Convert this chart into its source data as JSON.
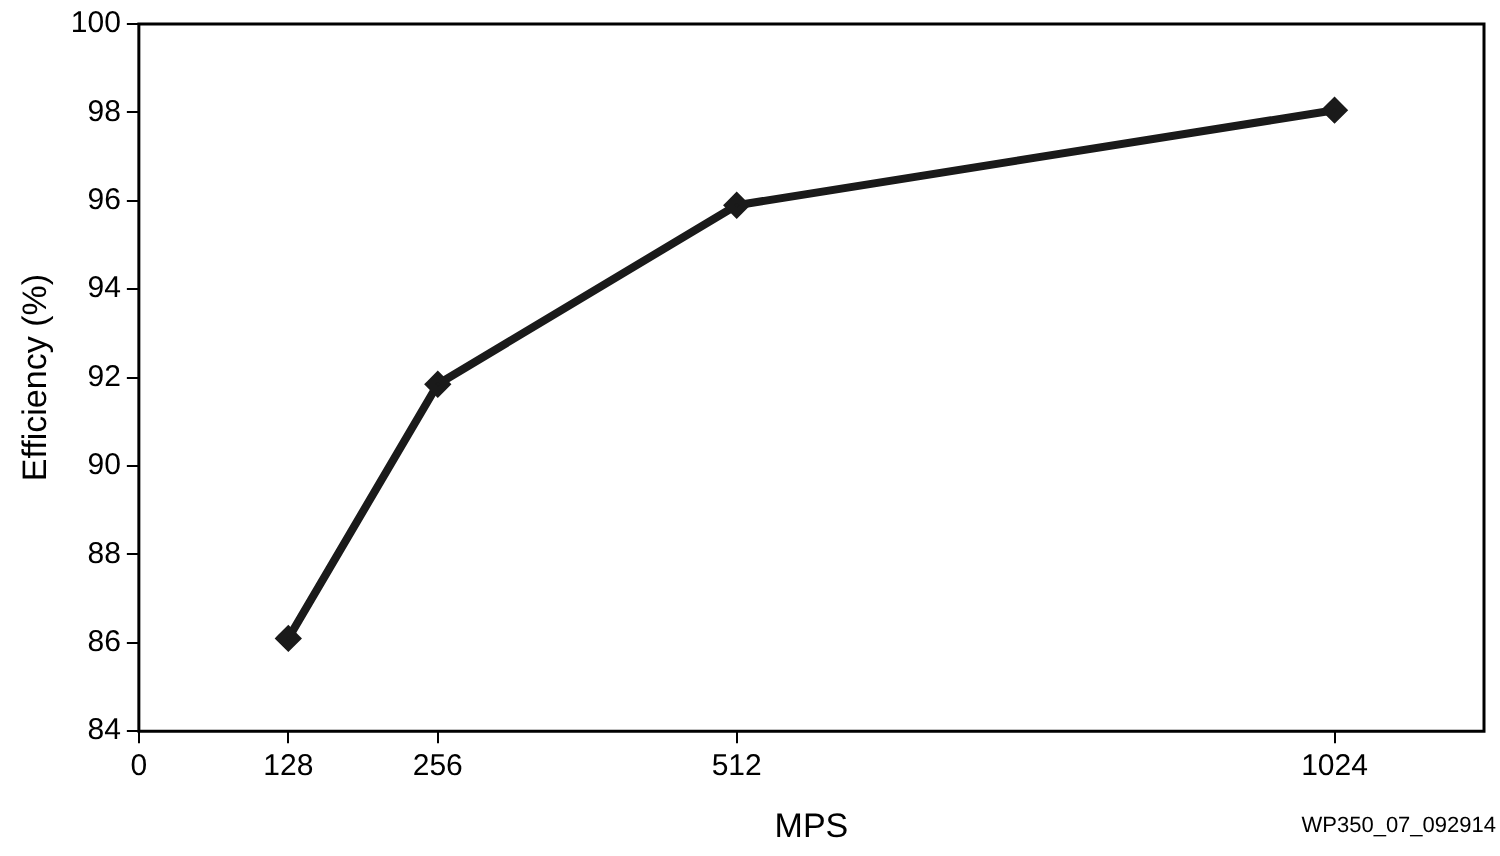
{
  "chart_data": {
    "type": "line",
    "xlabel": "MPS",
    "ylabel": "Efficiency (%)",
    "x": [
      128,
      256,
      512,
      1024
    ],
    "series": [
      {
        "color": "#1a1a1a",
        "values": [
          86.1,
          91.85,
          95.9,
          98.05
        ]
      }
    ],
    "xlim": [
      0,
      1152
    ],
    "xticks": [
      0,
      128,
      256,
      512,
      1024
    ],
    "ylim": [
      84,
      100
    ],
    "yticks": [
      84,
      86,
      88,
      90,
      92,
      94,
      96,
      98,
      100
    ],
    "grid": false,
    "legend": false,
    "marker": "diamond",
    "line_style": "solid",
    "annotations": [
      "WP350_07_092914"
    ]
  }
}
